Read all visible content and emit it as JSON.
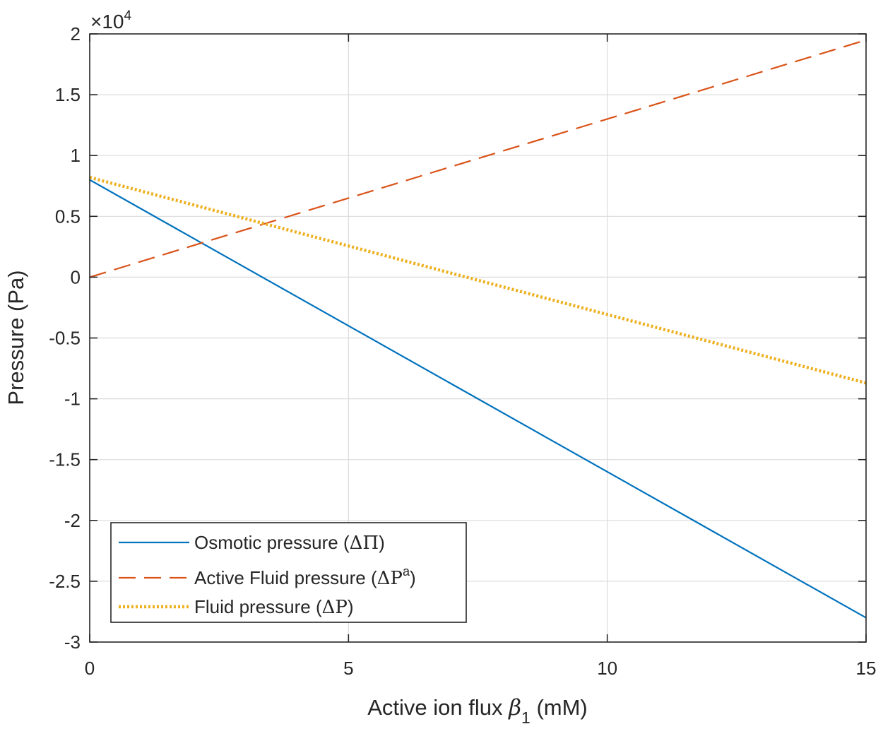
{
  "chart_data": {
    "type": "line",
    "xlabel_parts": {
      "prefix": "Active ion flux ",
      "symbol": "β",
      "subscript": "1",
      "suffix": " (mM)"
    },
    "ylabel": "Pressure (Pa)",
    "y_exponent_label": {
      "base": "×10",
      "exponent": "4"
    },
    "xlim": [
      0,
      15
    ],
    "ylim": [
      -30000,
      20000
    ],
    "xticks": [
      0,
      5,
      10,
      15
    ],
    "xtick_labels": [
      "0",
      "5",
      "10",
      "15"
    ],
    "yticks": [
      -30000,
      -25000,
      -20000,
      -15000,
      -10000,
      -5000,
      0,
      5000,
      10000,
      15000,
      20000
    ],
    "ytick_labels": [
      "-3",
      "-2.5",
      "-2",
      "-1.5",
      "-1",
      "-0.5",
      "0",
      "0.5",
      "1",
      "1.5",
      "2"
    ],
    "grid": true,
    "legend_position": "bottom-left",
    "series": [
      {
        "key": "osmotic",
        "name": "Osmotic pressure (ΔΠ)",
        "label_parts": {
          "text": "Osmotic pressure (",
          "symbol": "ΔΠ",
          "sup": "",
          "close": ")"
        },
        "color": "#0072BD",
        "style": "solid",
        "x": [
          0,
          15
        ],
        "y": [
          8000,
          -28000
        ]
      },
      {
        "key": "active",
        "name": "Active Fluid pressure (ΔPᵃ)",
        "label_parts": {
          "text": "Active Fluid pressure (",
          "symbol": "ΔP",
          "sup": "a",
          "close": ")"
        },
        "color": "#D95319",
        "style": "dashed",
        "x": [
          0,
          15
        ],
        "y": [
          0,
          19500
        ]
      },
      {
        "key": "fluid",
        "name": "Fluid pressure (ΔP)",
        "label_parts": {
          "text": "Fluid pressure (",
          "symbol": "ΔP",
          "sup": "",
          "close": ")"
        },
        "color": "#EDB120",
        "style": "dotted",
        "x": [
          0,
          15
        ],
        "y": [
          8200,
          -8700
        ]
      }
    ]
  }
}
